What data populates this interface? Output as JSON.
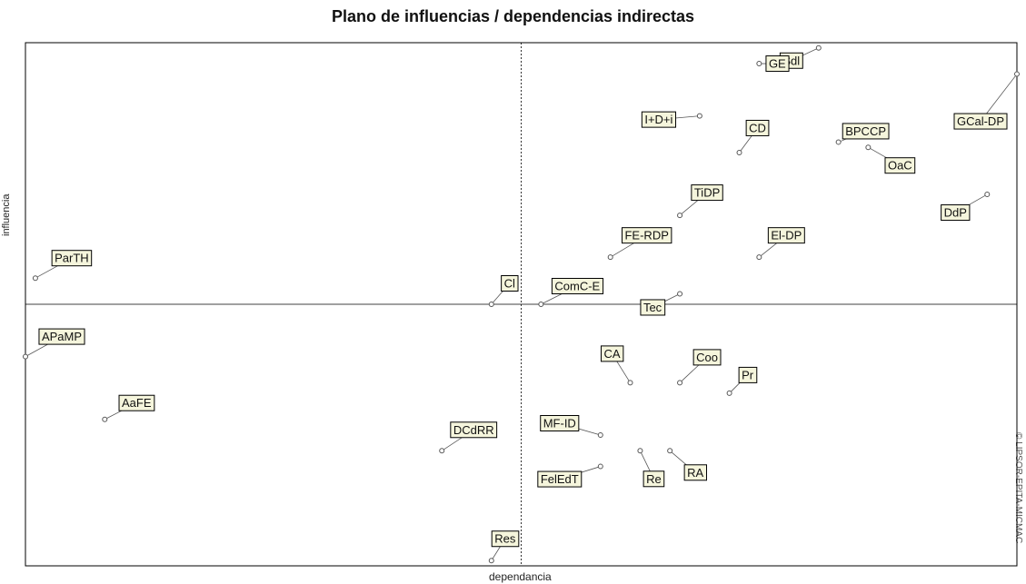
{
  "chart_data": {
    "type": "scatter",
    "title": "Plano de influencias / dependencias indirectas",
    "xlabel": "dependancia",
    "ylabel": "influencia",
    "source_note": "© LIPSOR-EPITA-MICMAC",
    "xlim": [
      0,
      100
    ],
    "ylim": [
      0,
      100
    ],
    "x_axis_at": 50,
    "y_axis_at": 50,
    "grid": false,
    "colors": {
      "frame": "#000000",
      "axes": "#000000",
      "label_bg": "#f5f5dc",
      "label_border": "#000000",
      "point": "#555555"
    },
    "points": [
      {
        "name": "Sdl",
        "x": 80,
        "y": 99
      },
      {
        "name": "GCal-DP",
        "x": 100,
        "y": 94
      },
      {
        "name": "GE",
        "x": 74,
        "y": 96
      },
      {
        "name": "BPCCP",
        "x": 82,
        "y": 81
      },
      {
        "name": "OaC",
        "x": 85,
        "y": 80
      },
      {
        "name": "I+D+i",
        "x": 68,
        "y": 86
      },
      {
        "name": "CD",
        "x": 72,
        "y": 79
      },
      {
        "name": "DdP",
        "x": 97,
        "y": 71
      },
      {
        "name": "TiDP",
        "x": 66,
        "y": 67
      },
      {
        "name": "FE-RDP",
        "x": 59,
        "y": 59
      },
      {
        "name": "El-DP",
        "x": 74,
        "y": 59
      },
      {
        "name": "ParTH",
        "x": 1,
        "y": 55
      },
      {
        "name": "Cl",
        "x": 47,
        "y": 50
      },
      {
        "name": "ComC-E",
        "x": 52,
        "y": 50
      },
      {
        "name": "Tec",
        "x": 66,
        "y": 52
      },
      {
        "name": "APaMP",
        "x": 0,
        "y": 40
      },
      {
        "name": "CA",
        "x": 61,
        "y": 35
      },
      {
        "name": "Coo",
        "x": 66,
        "y": 35
      },
      {
        "name": "Pr",
        "x": 71,
        "y": 33
      },
      {
        "name": "AaFE",
        "x": 8,
        "y": 28
      },
      {
        "name": "DCdRR",
        "x": 42,
        "y": 22
      },
      {
        "name": "MF-ID",
        "x": 58,
        "y": 25
      },
      {
        "name": "Re",
        "x": 62,
        "y": 22
      },
      {
        "name": "RA",
        "x": 65,
        "y": 22
      },
      {
        "name": "FelEdT",
        "x": 58,
        "y": 19
      },
      {
        "name": "Res",
        "x": 47,
        "y": 1
      }
    ]
  }
}
